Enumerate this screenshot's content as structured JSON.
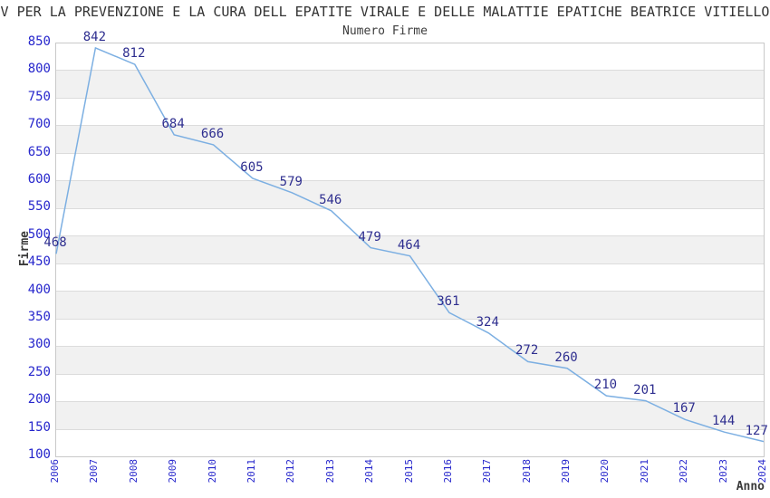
{
  "title": "V PER LA PREVENZIONE E LA CURA DELL EPATITE VIRALE E DELLE MALATTIE EPATICHE BEATRICE VITIELLO",
  "chart_data": {
    "type": "line",
    "subtitle": "Numero Firme",
    "xlabel": "Anno",
    "ylabel": "Firme",
    "categories": [
      "2006",
      "2007",
      "2008",
      "2009",
      "2010",
      "2011",
      "2012",
      "2013",
      "2014",
      "2015",
      "2016",
      "2017",
      "2018",
      "2019",
      "2020",
      "2021",
      "2022",
      "2023",
      "2024"
    ],
    "values": [
      468,
      842,
      812,
      684,
      666,
      605,
      579,
      546,
      479,
      464,
      361,
      324,
      272,
      260,
      210,
      201,
      167,
      144,
      127
    ],
    "ylim": [
      100,
      850
    ],
    "ytick_step": 50,
    "grid": "horizontal-bands-alternating",
    "legend": "none",
    "colors": {
      "line": "#7cafe2",
      "data_label": "#2e2e8f",
      "tick_label": "#2626cc",
      "band_gray": "#f1f1f1",
      "gridline": "#dcdcdc",
      "plot_border": "#c9c9c9",
      "text": "#3a3a3a"
    }
  }
}
